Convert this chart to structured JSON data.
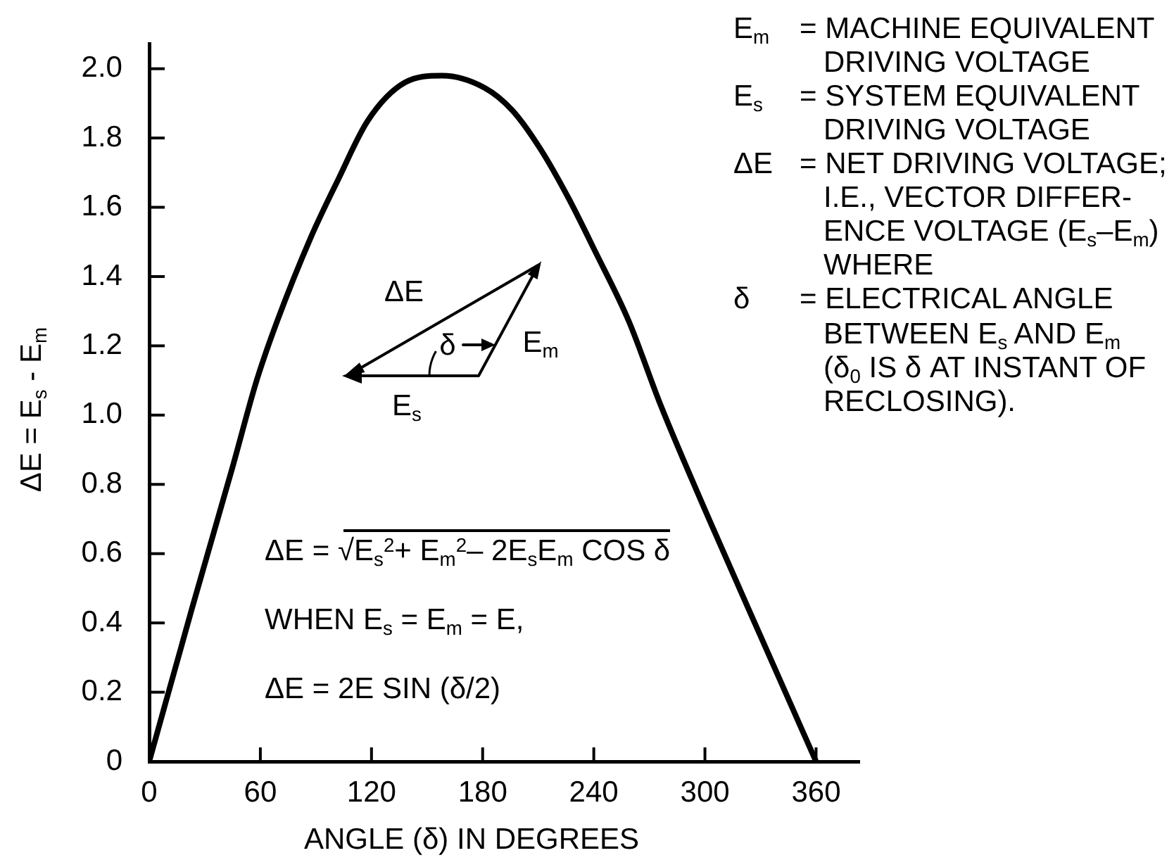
{
  "chart_data": {
    "type": "line",
    "xlabel": "ANGLE (δ) IN DEGREES",
    "ylabel": "ΔE = E$_{s}$ - E$_{m}$",
    "x": [
      0,
      23,
      45,
      58,
      69,
      87,
      102,
      118,
      138,
      158,
      181,
      196,
      211,
      226,
      241,
      259,
      276,
      303,
      331,
      360
    ],
    "values": [
      0,
      0.44,
      0.85,
      1.1,
      1.27,
      1.51,
      1.68,
      1.85,
      1.96,
      1.98,
      1.945,
      1.88,
      1.77,
      1.63,
      1.47,
      1.27,
      1.03,
      0.69,
      0.35,
      0
    ],
    "color": "#000000",
    "xlim": [
      0,
      383
    ],
    "ylim": [
      0,
      2.07
    ],
    "xticks": [
      0,
      60,
      120,
      180,
      240,
      300,
      360
    ],
    "yticks": [
      0,
      0.2,
      0.4,
      0.6,
      0.8,
      {
        "value": 1,
        "label": "1.0"
      },
      1.2,
      1.4,
      1.6,
      1.8,
      {
        "value": 2,
        "label": "2.0"
      }
    ],
    "annotations": [
      "E$_{m}$\t= MACHINE EQUIVALENT\nDRIVING VOLTAGE",
      "E$_{s}$\t= SYSTEM EQUIVALENT\nDRIVING VOLTAGE",
      "ΔE\t= NET DRIVING VOLTAGE;\nI.E., VECTOR DIFFER-\nENCE VOLTAGE (E$_{s}$–E$_{m}$)\nWHERE",
      "δ\t= ELECTRICAL ANGLE\nBETWEEN E$_{s}$ AND E$_{m}$\n(δ$_{0}$ IS δ AT INSTANT OF\nRECLOSING).",
      "ΔE",
      "δ",
      "E$_{m}$",
      "E$_{s}$",
      "ΔE = √E$_{s}$$^{2}$+ E$_{m}$$^{2}$– 2E$_{s}$E$_{m}$ COS δ",
      "WHEN E$_{s}$ = E$_{m}$ = E,",
      "ΔE = 2E SIN (δ/2)"
    ]
  }
}
